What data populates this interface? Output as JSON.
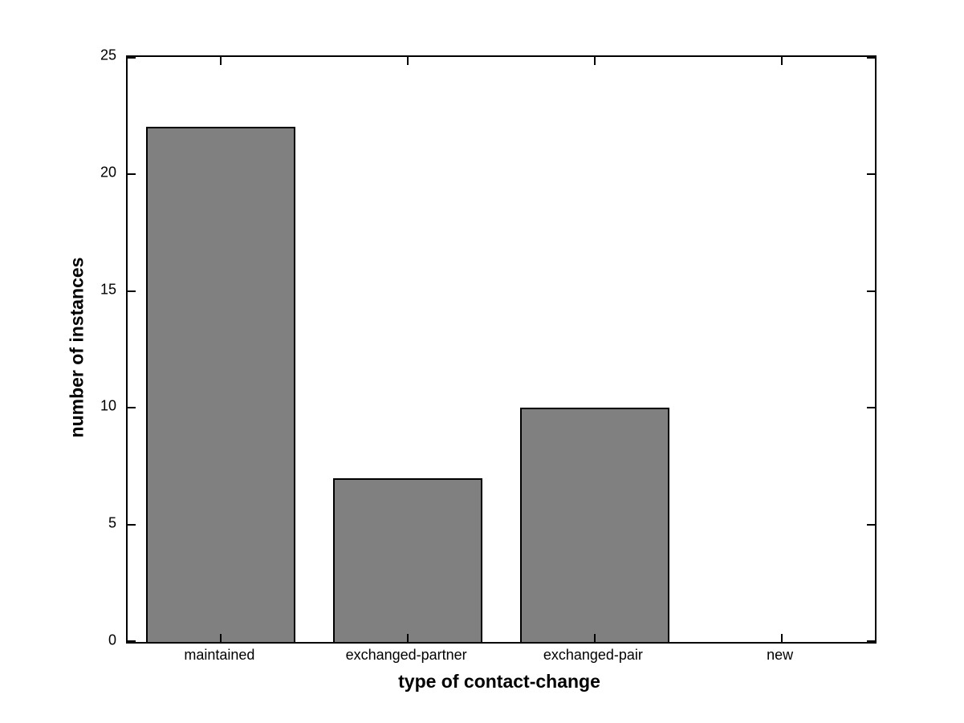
{
  "chart_data": {
    "type": "bar",
    "title": "",
    "xlabel": "type of contact-change",
    "ylabel": "number of instances",
    "categories": [
      "maintained",
      "exchanged-partner",
      "exchanged-pair",
      "new"
    ],
    "values": [
      22,
      7,
      10,
      0
    ],
    "ylim": [
      0,
      25
    ],
    "yticks": [
      0,
      5,
      10,
      15,
      20,
      25
    ],
    "ytick_labels": [
      "0",
      "5",
      "10",
      "15",
      "20",
      "25"
    ],
    "grid": false,
    "legend": null,
    "bar_width_fraction": 0.8,
    "colors": {
      "bar_fill": "#808080",
      "bar_edge": "#000000",
      "axis": "#000000",
      "background": "#ffffff",
      "text": "#000000"
    }
  }
}
